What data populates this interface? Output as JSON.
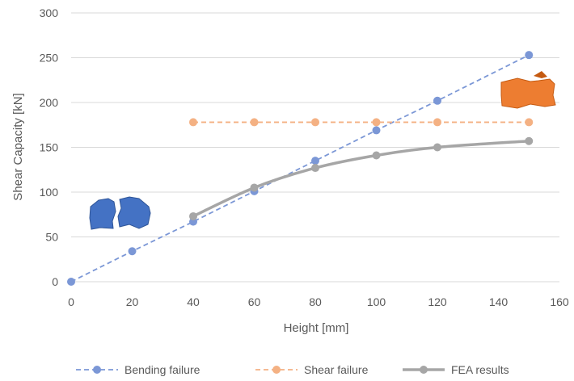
{
  "chart_data": {
    "type": "line",
    "title": "",
    "xlabel": "Height [mm]",
    "ylabel": "Shear Capacity [kN]",
    "xlim": [
      0,
      160
    ],
    "ylim": [
      0,
      300
    ],
    "x_ticks": [
      0,
      20,
      40,
      60,
      80,
      100,
      120,
      140,
      160
    ],
    "y_ticks": [
      0,
      50,
      100,
      150,
      200,
      250,
      300
    ],
    "grid": "horizontal",
    "legend_position": "bottom",
    "series": [
      {
        "name": "Bending failure",
        "color": "#7b97d6",
        "style": "dashed",
        "x": [
          0,
          20,
          40,
          60,
          80,
          100,
          120,
          150
        ],
        "y": [
          0,
          34,
          67,
          101,
          135,
          169,
          202,
          253
        ]
      },
      {
        "name": "Shear failure",
        "color": "#f4b183",
        "style": "dashed",
        "x": [
          40,
          60,
          80,
          100,
          120,
          150
        ],
        "y": [
          178,
          178,
          178,
          178,
          178,
          178
        ]
      },
      {
        "name": "FEA results",
        "color": "#a6a6a6",
        "style": "solid",
        "x": [
          40,
          60,
          80,
          100,
          120,
          150
        ],
        "y": [
          73,
          105,
          127,
          141,
          150,
          157
        ]
      }
    ],
    "annotations": [
      {
        "kind": "bending-failure-specimen-illustration",
        "color": "#4472c4"
      },
      {
        "kind": "shear-failure-specimen-illustration",
        "color": "#ed7d31"
      }
    ]
  }
}
